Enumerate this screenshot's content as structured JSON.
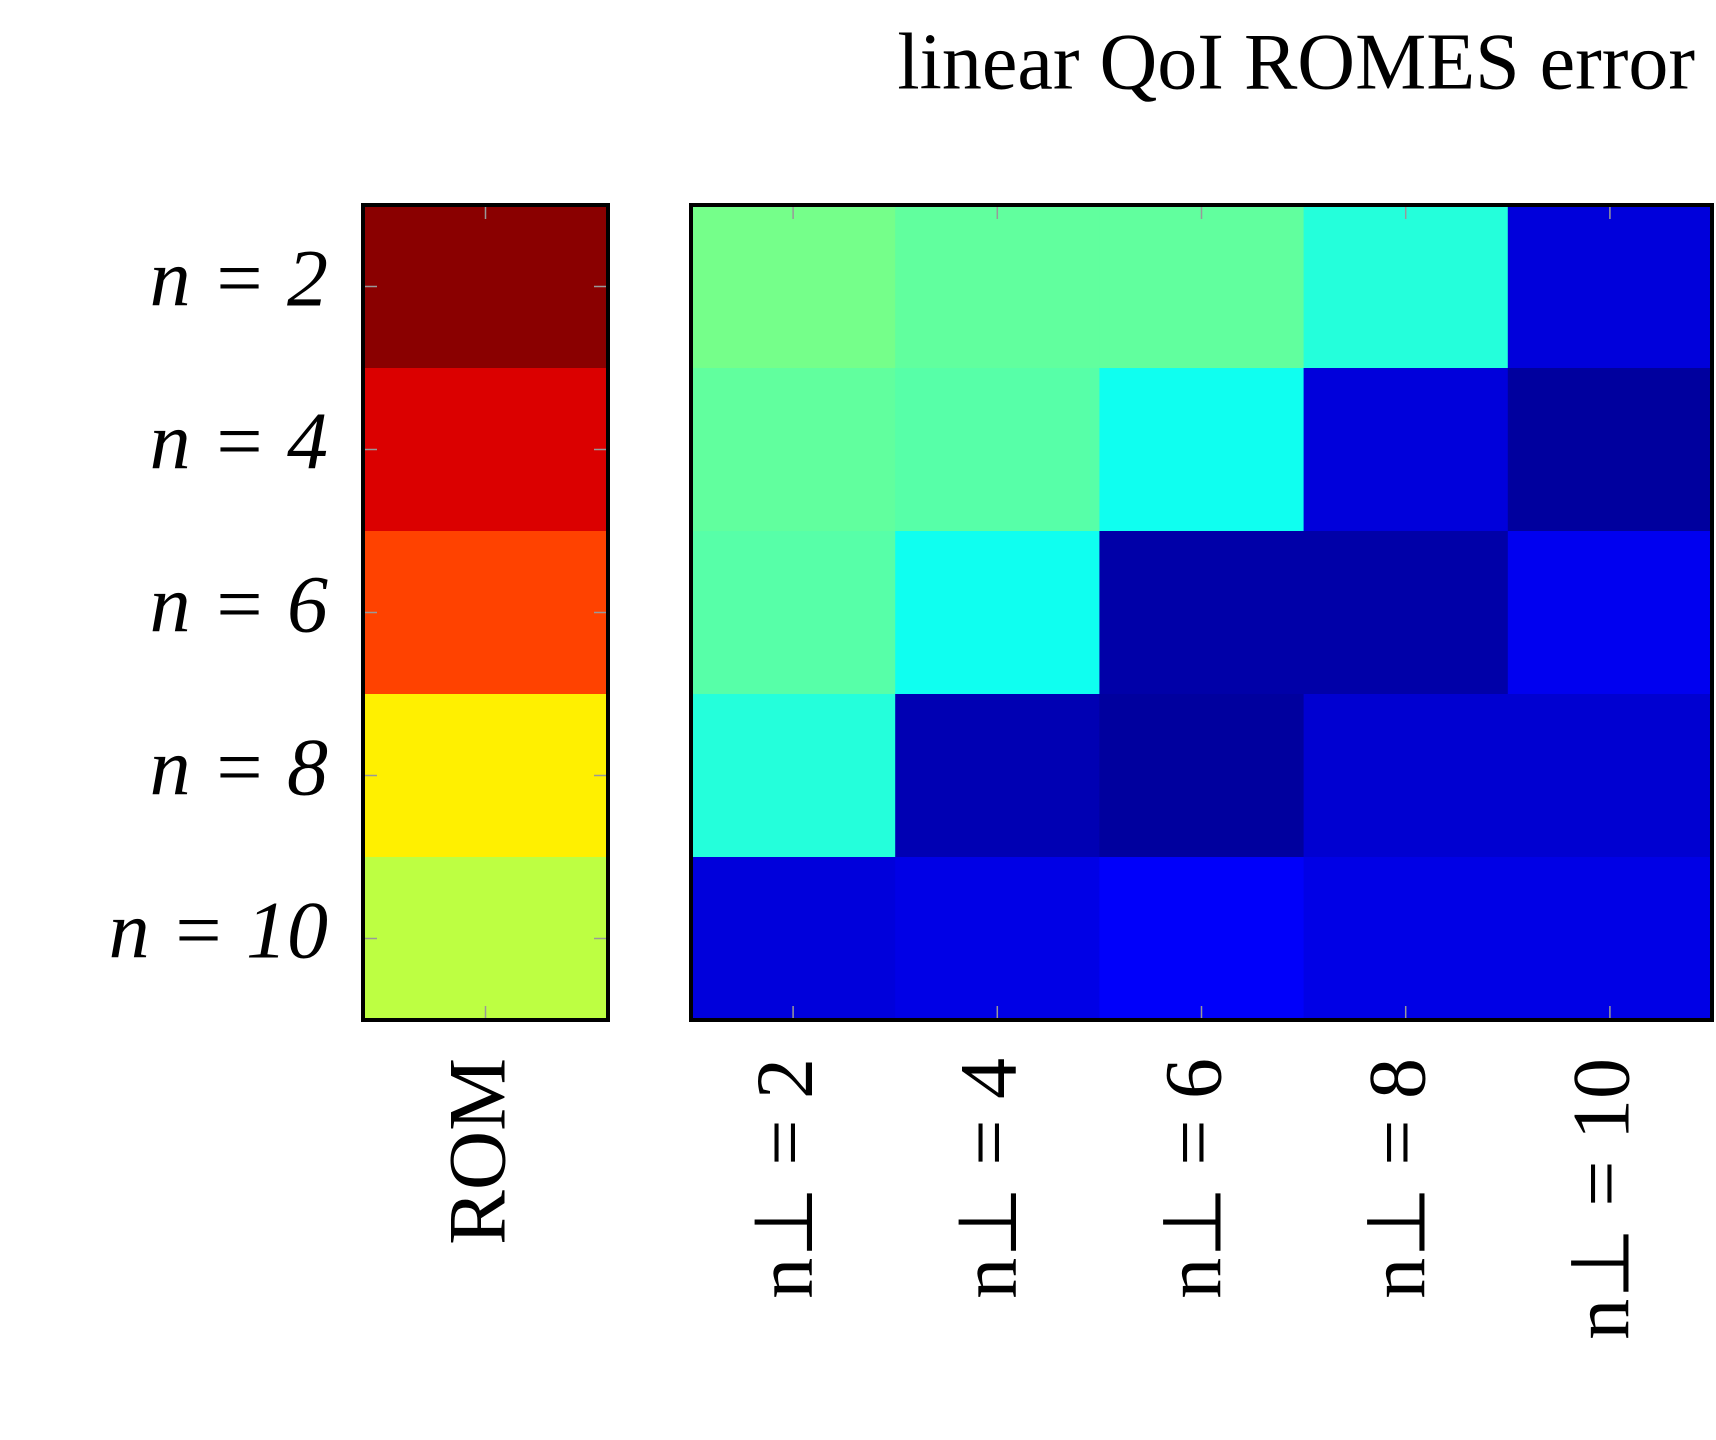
{
  "chart_data": {
    "type": "heatmap",
    "title": "linear QoI ROMES error",
    "colormap": "jet",
    "clim": [
      0,
      1
    ],
    "rows": [
      "n = 2",
      "n = 4",
      "n = 6",
      "n = 8",
      "n = 10"
    ],
    "panels": [
      {
        "columns": [
          "ROM"
        ],
        "values": [
          [
            0.99
          ],
          [
            0.91
          ],
          [
            0.81
          ],
          [
            0.64
          ],
          [
            0.56
          ]
        ]
      },
      {
        "columns": [
          "n⊥ = 2",
          "n⊥ = 4",
          "n⊥ = 6",
          "n⊥ = 8",
          "n⊥ = 10"
        ],
        "values": [
          [
            0.49,
            0.47,
            0.47,
            0.41,
            0.09
          ],
          [
            0.47,
            0.46,
            0.39,
            0.09,
            0.03
          ],
          [
            0.46,
            0.39,
            0.04,
            0.04,
            0.11
          ],
          [
            0.41,
            0.05,
            0.03,
            0.08,
            0.08
          ],
          [
            0.09,
            0.1,
            0.12,
            0.1,
            0.1
          ]
        ]
      }
    ]
  }
}
